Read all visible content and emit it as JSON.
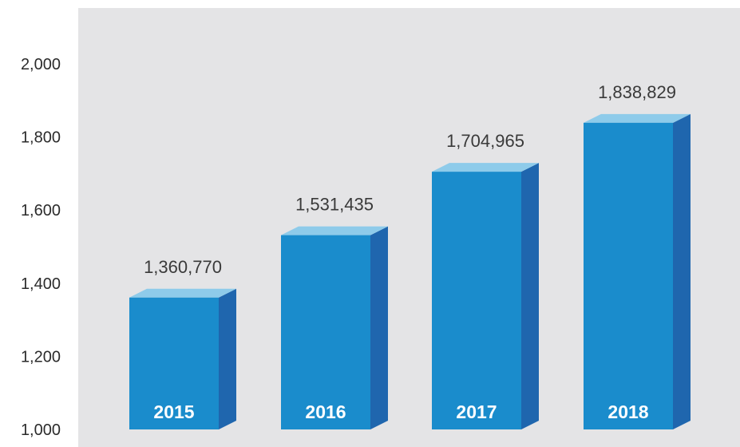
{
  "chart_data": {
    "type": "bar",
    "categories": [
      "2015",
      "2016",
      "2017",
      "2018"
    ],
    "values": [
      1360770,
      1531435,
      1704965,
      1838829
    ],
    "value_labels": [
      "1,360,770",
      "1,531,435",
      "1,704,965",
      "1,838,829"
    ],
    "title": "",
    "xlabel": "",
    "ylabel": "",
    "ylim": [
      1000,
      2000
    ],
    "y_scale_note": "",
    "y_ticks": [
      1000,
      1200,
      1400,
      1600,
      1800,
      2000
    ],
    "y_tick_labels": [
      "1,000",
      "1,200",
      "1,400",
      "1,600",
      "1,800",
      "2,000"
    ],
    "grid": false,
    "legend": "none",
    "style": "3d-bar",
    "colors": {
      "plot_background": "#e4e4e6",
      "bar_front": "#1a8ccc",
      "bar_side": "#1f66ae",
      "bar_top": "#8ecbea",
      "category_label": "#ffffff"
    }
  }
}
